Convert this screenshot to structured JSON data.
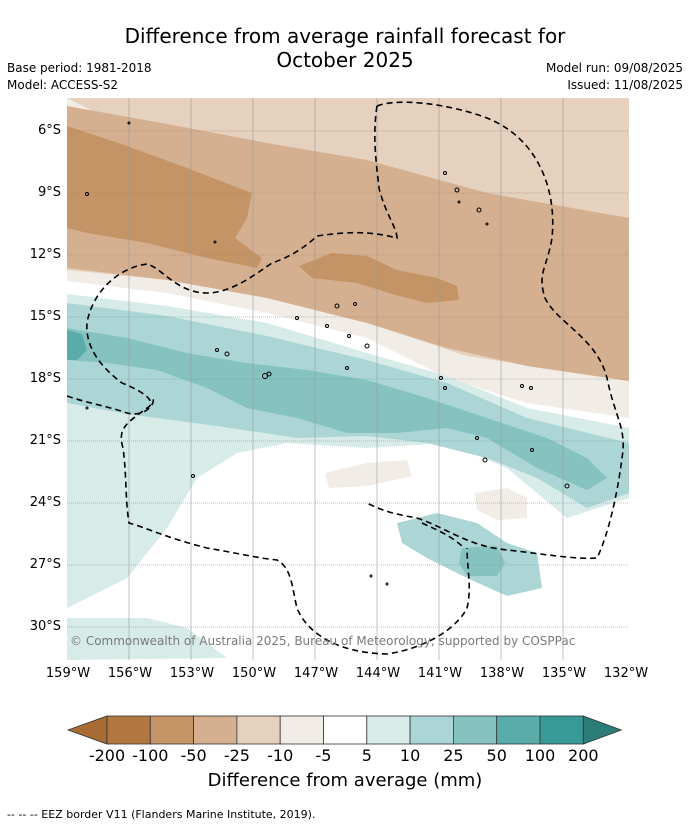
{
  "title_line1": "Difference from average rainfall forecast for",
  "title_line2": "October 2025",
  "base_period": "Base period: 1981-2018",
  "model": "Model: ACCESS-S2",
  "model_run": "Model run: 09/08/2025",
  "issued": "Issued: 11/08/2025",
  "lat_labels": [
    "6°S",
    "9°S",
    "12°S",
    "15°S",
    "18°S",
    "21°S",
    "24°S",
    "27°S",
    "30°S"
  ],
  "lon_labels": [
    "159°W",
    "156°W",
    "153°W",
    "150°W",
    "147°W",
    "144°W",
    "141°W",
    "138°W",
    "135°W",
    "132°W"
  ],
  "copyright": "© Commonwealth of Australia 2025, Bureau of Meteorology, supported by COSPPac",
  "colorbar": {
    "labels": [
      "-200",
      "-100",
      "-50",
      "-25",
      "-10",
      "-5",
      "5",
      "10",
      "25",
      "50",
      "100",
      "200"
    ],
    "colors": [
      "#a86b33",
      "#b07840",
      "#c49467",
      "#d4b090",
      "#e6d1bf",
      "#f1ede6",
      "#ffffff",
      "#d7ebe9",
      "#acd6d5",
      "#86c2c0",
      "#5aacab",
      "#389a96",
      "#2a7d78"
    ],
    "title": "Difference from average (mm)"
  },
  "footnote": "--  --  -- EEZ border V11 (Flanders Marine Institute, 2019)."
}
